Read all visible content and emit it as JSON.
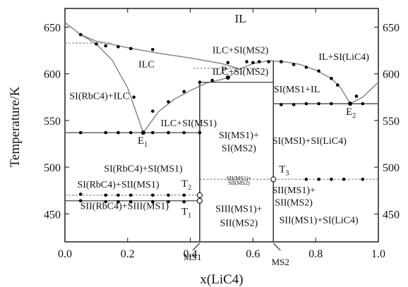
{
  "chart_data": {
    "type": "scatter",
    "title": "",
    "xlabel": "x(LiC4)",
    "ylabel": "Temperature/K",
    "xlim": [
      0.0,
      1.0
    ],
    "ylim": [
      420,
      670
    ],
    "x_ticks": [
      "0.0",
      "0.2",
      "0.4",
      "0.6",
      "0.8",
      "1.0"
    ],
    "x_tick_values": [
      0.0,
      0.2,
      0.4,
      0.6,
      0.8,
      1.0
    ],
    "y_ticks": [
      "450",
      "500",
      "550",
      "600",
      "650"
    ],
    "y_tick_values": [
      450,
      500,
      550,
      600,
      650
    ],
    "grid": false,
    "colors": {
      "points": "#000000",
      "curves": "#888888",
      "phase_lines": "#444444"
    },
    "experimental_points": [
      [
        0.05,
        642
      ],
      [
        0.05,
        537
      ],
      [
        0.05,
        471
      ],
      [
        0.05,
        464
      ],
      [
        0.1,
        632
      ],
      [
        0.13,
        630
      ],
      [
        0.13,
        537
      ],
      [
        0.13,
        470
      ],
      [
        0.13,
        463
      ],
      [
        0.17,
        629
      ],
      [
        0.17,
        537
      ],
      [
        0.17,
        470
      ],
      [
        0.17,
        463
      ],
      [
        0.21,
        627
      ],
      [
        0.21,
        537
      ],
      [
        0.21,
        470
      ],
      [
        0.21,
        463
      ],
      [
        0.22,
        575
      ],
      [
        0.25,
        537
      ],
      [
        0.28,
        626
      ],
      [
        0.28,
        560
      ],
      [
        0.28,
        537
      ],
      [
        0.28,
        470
      ],
      [
        0.28,
        463
      ],
      [
        0.33,
        570
      ],
      [
        0.33,
        537
      ],
      [
        0.33,
        470
      ],
      [
        0.33,
        463
      ],
      [
        0.38,
        581
      ],
      [
        0.38,
        537
      ],
      [
        0.38,
        470
      ],
      [
        0.38,
        463
      ],
      [
        0.43,
        591
      ],
      [
        0.43,
        537
      ],
      [
        0.43,
        470
      ],
      [
        0.43,
        463
      ],
      [
        0.47,
        593
      ],
      [
        0.52,
        612
      ],
      [
        0.58,
        613
      ],
      [
        0.6,
        612
      ],
      [
        0.62,
        613
      ],
      [
        0.65,
        613
      ],
      [
        0.69,
        613
      ],
      [
        0.69,
        567
      ],
      [
        0.73,
        610
      ],
      [
        0.73,
        567
      ],
      [
        0.77,
        607
      ],
      [
        0.77,
        568
      ],
      [
        0.77,
        487
      ],
      [
        0.81,
        603
      ],
      [
        0.81,
        568
      ],
      [
        0.81,
        487
      ],
      [
        0.85,
        595
      ],
      [
        0.85,
        568
      ],
      [
        0.85,
        487
      ],
      [
        0.87,
        588
      ],
      [
        0.89,
        487
      ],
      [
        0.93,
        576
      ],
      [
        0.95,
        568
      ],
      [
        0.95,
        487
      ]
    ],
    "liquidus_curves": [
      {
        "name": "",
        "points": [
          [
            0.0,
            655
          ],
          [
            0.05,
            642
          ],
          [
            0.1,
            635
          ],
          [
            0.2,
            628
          ],
          [
            0.3,
            622
          ],
          [
            0.4,
            617
          ],
          [
            0.5,
            611
          ],
          [
            0.55,
            606
          ]
        ]
      },
      {
        "name": "",
        "points": [
          [
            0.05,
            642
          ],
          [
            0.1,
            632
          ],
          [
            0.15,
            615
          ],
          [
            0.2,
            585
          ],
          [
            0.25,
            537
          ]
        ]
      },
      {
        "name": "",
        "points": [
          [
            0.25,
            537
          ],
          [
            0.3,
            560
          ],
          [
            0.35,
            573
          ],
          [
            0.4,
            582
          ],
          [
            0.45,
            590
          ],
          [
            0.5,
            594
          ],
          [
            0.52,
            596
          ]
        ]
      },
      {
        "name": "",
        "points": [
          [
            0.52,
            596
          ],
          [
            0.55,
            604
          ],
          [
            0.6,
            611
          ],
          [
            0.65,
            614
          ],
          [
            0.7,
            613
          ],
          [
            0.75,
            610
          ],
          [
            0.8,
            604
          ],
          [
            0.85,
            595
          ],
          [
            0.88,
            585
          ],
          [
            0.91,
            568
          ]
        ]
      },
      {
        "name": "",
        "points": [
          [
            0.91,
            568
          ],
          [
            0.95,
            575
          ],
          [
            1.0,
            591
          ]
        ]
      }
    ],
    "invariant_lines": [
      {
        "name": "",
        "x": [
          0.0,
          0.43
        ],
        "y": 537
      },
      {
        "name": "",
        "x": [
          0.43,
          0.665
        ],
        "y": 591
      },
      {
        "name": "",
        "x": [
          0.665,
          1.0
        ],
        "y": 568
      },
      {
        "name": "",
        "x": [
          0.0,
          0.43
        ],
        "y": 470
      },
      {
        "name": "",
        "x": [
          0.0,
          0.43
        ],
        "y": 464
      },
      {
        "name": "",
        "x": [
          0.43,
          1.0
        ],
        "y": 487
      },
      {
        "name": "",
        "x": [
          0.0,
          0.15
        ],
        "y": 633
      },
      {
        "name": "",
        "x": [
          0.41,
          0.62
        ],
        "y": 606
      }
    ],
    "compound_lines": [
      {
        "name": "MS1",
        "x": 0.43,
        "y": [
          420,
          591
        ]
      },
      {
        "name": "MS2",
        "x": 0.665,
        "y": [
          420,
          614
        ]
      }
    ],
    "special_points": [
      {
        "label": "E1",
        "x": 0.25,
        "y": 537
      },
      {
        "label": "E2",
        "x": 0.91,
        "y": 568
      },
      {
        "label": "P",
        "x": 0.52,
        "y": 596
      },
      {
        "label": "T1",
        "x": 0.43,
        "y": 464
      },
      {
        "label": "T2",
        "x": 0.43,
        "y": 470
      },
      {
        "label": "T3",
        "x": 0.665,
        "y": 487
      }
    ],
    "region_labels": [
      {
        "text": "IL",
        "x": 0.56,
        "y": 655
      },
      {
        "text": "ILC",
        "x": 0.26,
        "y": 607
      },
      {
        "text": "ILC+SI(MS2)",
        "x": 0.56,
        "y": 622
      },
      {
        "text": "ILC+SI(MS2)",
        "x": 0.56,
        "y": 599
      },
      {
        "text": "IL+SI(LiC4)",
        "x": 0.89,
        "y": 615
      },
      {
        "text": "SI(MS1+IL",
        "x": 0.74,
        "y": 580
      },
      {
        "text": "SI(RbC4)+ILC",
        "x": 0.11,
        "y": 573
      },
      {
        "text": "ILC+SI(MS1)",
        "x": 0.395,
        "y": 544
      },
      {
        "text": "SI(MS1)+",
        "x": 0.555,
        "y": 531
      },
      {
        "text": "SI(MS2)",
        "x": 0.555,
        "y": 517
      },
      {
        "text": "SI(MSI)+SI(LiC4)",
        "x": 0.78,
        "y": 525
      },
      {
        "text": "SI(RbC4)+SI(MS1)",
        "x": 0.25,
        "y": 495
      },
      {
        "text": "SI(RbC4)+SII(MS1)",
        "x": 0.17,
        "y": 478
      },
      {
        "text": "SII(MS1)+",
        "x": 0.555,
        "y": 486
      },
      {
        "text": "SII(MS2)",
        "x": 0.555,
        "y": 481
      },
      {
        "text": "SII(MS1)+",
        "x": 0.73,
        "y": 472
      },
      {
        "text": "SII(MS2)",
        "x": 0.73,
        "y": 459
      },
      {
        "text": "SII(RbC4)+SIII(MS1)",
        "x": 0.19,
        "y": 455
      },
      {
        "text": "SIII(MS1)+",
        "x": 0.555,
        "y": 452
      },
      {
        "text": "SII(MS2)",
        "x": 0.555,
        "y": 437
      },
      {
        "text": "SII(MS1)+SI(LiC4)",
        "x": 0.81,
        "y": 440
      }
    ],
    "bottom_markers": [
      {
        "label": "MS1",
        "x": 0.43
      },
      {
        "label": "MS2",
        "x": 0.665
      }
    ]
  }
}
